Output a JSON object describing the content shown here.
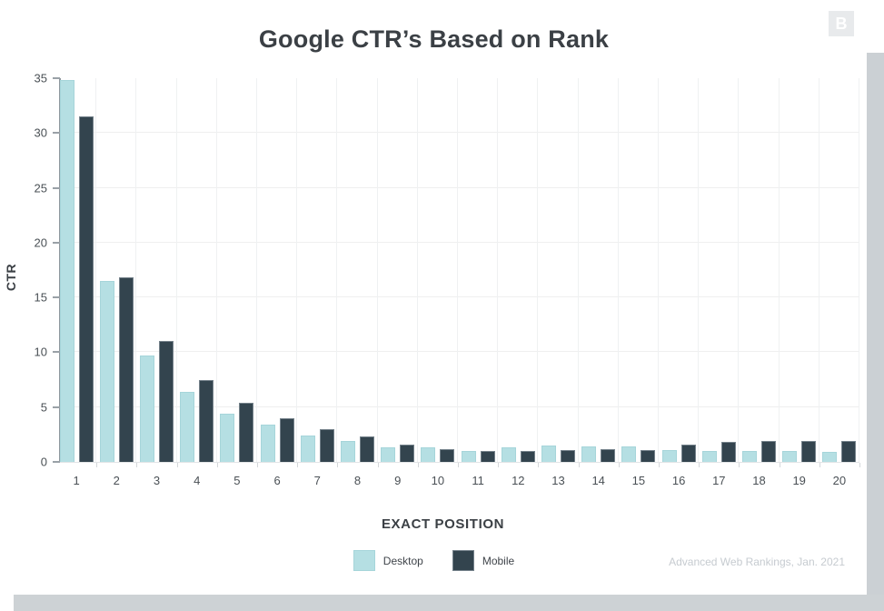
{
  "title": "Google CTR’s Based on Rank",
  "logo": {
    "letter": "B"
  },
  "source_note": "Advanced Web Rankings, Jan. 2021",
  "legend": {
    "desktop_label": "Desktop",
    "mobile_label": "Mobile"
  },
  "axes": {
    "y_title": "CTR",
    "x_title": "EXACT POSITION"
  },
  "colors": {
    "desktop": "#b5dfe3",
    "mobile": "#33444e",
    "title_text": "#3b4045",
    "tick_text": "#4a5055",
    "gridline": "#efefef",
    "page_edge_gray": "#cdd2d5",
    "logo_bg": "#e8eaec",
    "source_text": "#c6cbd0"
  },
  "chart_data": {
    "type": "bar",
    "title": "Google CTR’s Based on Rank",
    "xlabel": "EXACT POSITION",
    "ylabel": "CTR",
    "categories": [
      "1",
      "2",
      "3",
      "4",
      "5",
      "6",
      "7",
      "8",
      "9",
      "10",
      "11",
      "12",
      "13",
      "14",
      "15",
      "16",
      "17",
      "18",
      "19",
      "20"
    ],
    "series": [
      {
        "name": "Desktop",
        "color": "#b5dfe3",
        "values": [
          34.8,
          16.5,
          9.7,
          6.4,
          4.4,
          3.4,
          2.4,
          1.9,
          1.3,
          1.3,
          1.0,
          1.3,
          1.5,
          1.4,
          1.4,
          1.1,
          1.0,
          1.0,
          1.0,
          0.9
        ]
      },
      {
        "name": "Mobile",
        "color": "#33444e",
        "values": [
          31.5,
          16.8,
          11.0,
          7.5,
          5.4,
          4.0,
          3.0,
          2.3,
          1.6,
          1.2,
          1.0,
          1.0,
          1.1,
          1.2,
          1.1,
          1.6,
          1.8,
          1.9,
          1.9,
          1.9
        ]
      }
    ],
    "ylim": [
      0,
      35
    ],
    "yticks": [
      0,
      5,
      10,
      15,
      20,
      25,
      30,
      35
    ],
    "grid": true,
    "legend_position": "bottom",
    "source": "Advanced Web Rankings, Jan. 2021"
  }
}
